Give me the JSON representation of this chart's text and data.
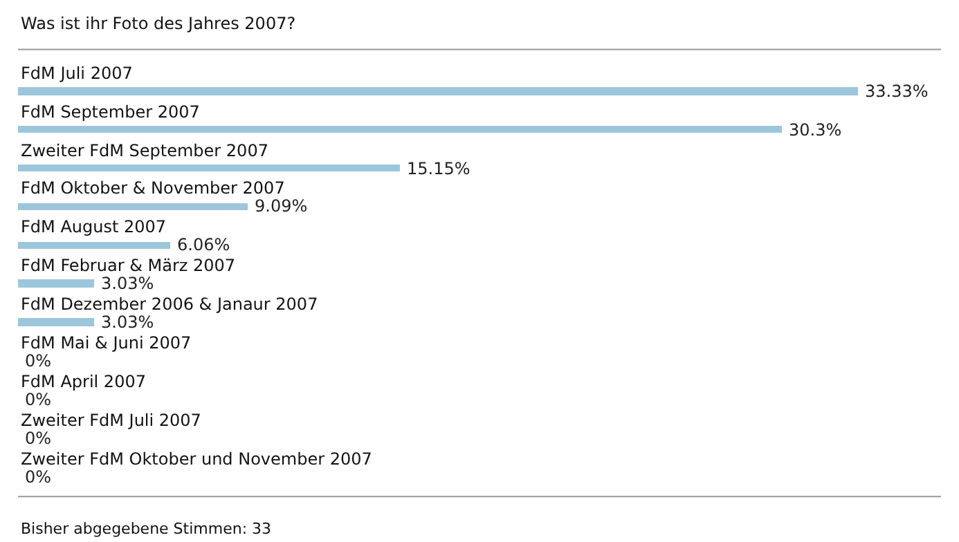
{
  "chart_data": {
    "type": "bar",
    "orientation": "horizontal",
    "title": "Was ist ihr Foto des Jahres 2007?",
    "categories": [
      "FdM Juli 2007",
      "FdM September 2007",
      "Zweiter FdM September 2007",
      "FdM Oktober & November 2007",
      "FdM August 2007",
      "FdM Februar & März 2007",
      "FdM Dezember 2006 & Janaur 2007",
      "FdM Mai & Juni 2007",
      "FdM April 2007",
      "Zweiter FdM Juli 2007",
      "Zweiter FdM Oktober und November 2007"
    ],
    "values": [
      33.33,
      30.3,
      15.15,
      9.09,
      6.06,
      3.03,
      3.03,
      0,
      0,
      0,
      0
    ],
    "value_labels": [
      "33.33%",
      "30.3%",
      "15.15%",
      "9.09%",
      "6.06%",
      "3.03%",
      "3.03%",
      "0%",
      "0%",
      "0%",
      "0%"
    ],
    "color": "#9cc6dc",
    "xlim": [
      0,
      36.6
    ],
    "tick_labels": false,
    "legend": false,
    "annotations": [
      "Bisher abgegebene Stimmen: 33"
    ]
  }
}
